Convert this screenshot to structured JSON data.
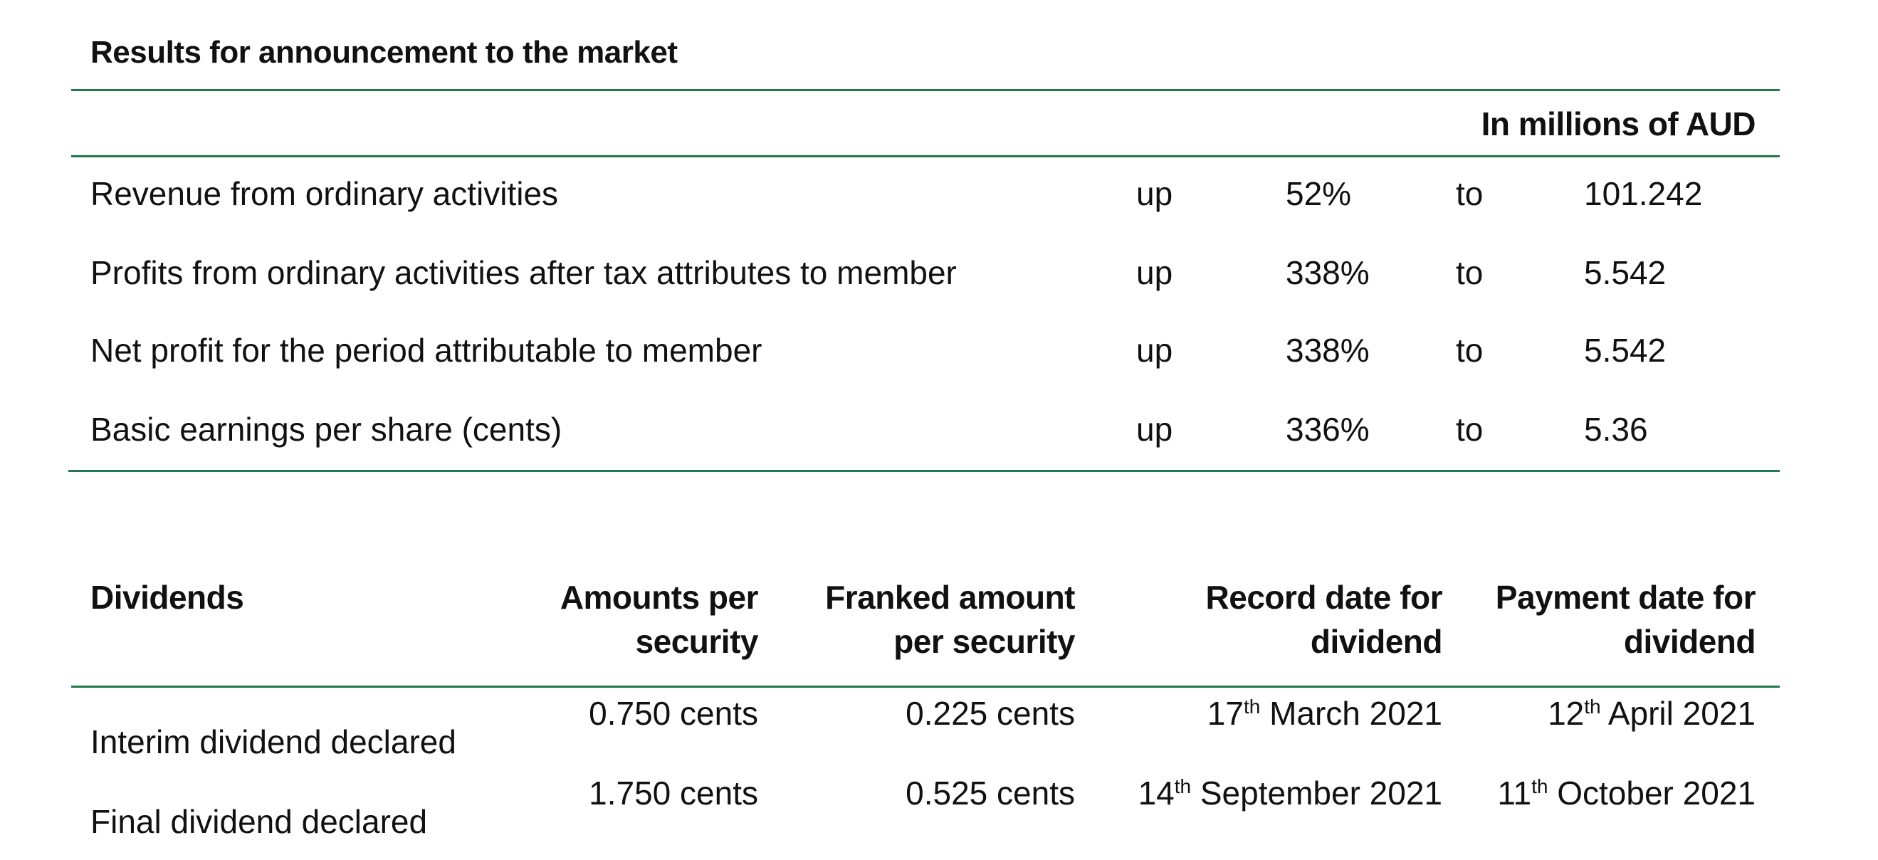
{
  "title": "Results for announcement to the market",
  "unit_header": "In millions of AUD",
  "results": [
    {
      "label": "Revenue from ordinary activities",
      "direction": "up",
      "change": "52%",
      "to": "to",
      "value": "101.242"
    },
    {
      "label": "Profits from ordinary activities after tax attributes to member",
      "direction": "up",
      "change": "338%",
      "to": "to",
      "value": "5.542"
    },
    {
      "label": "Net profit for the period attributable to member",
      "direction": "up",
      "change": "338%",
      "to": "to",
      "value": "5.542"
    },
    {
      "label": "Basic earnings per share (cents)",
      "direction": "up",
      "change": "336%",
      "to": "to",
      "value": "5.36"
    }
  ],
  "dividends": {
    "headers": {
      "label": "Dividends",
      "amount_line1": "Amounts per",
      "amount_line2": "security",
      "franked_line1": "Franked amount",
      "franked_line2": "per security",
      "record_line1": "Record date for",
      "record_line2": "dividend",
      "payment_line1": "Payment date for",
      "payment_line2": "dividend"
    },
    "rows": [
      {
        "label": "Interim dividend declared",
        "amount": "0.750 cents",
        "franked": "0.225 cents",
        "record_day": "17",
        "record_suffix": "th",
        "record_rest": " March 2021",
        "payment_day": "12",
        "payment_suffix": "th",
        "payment_rest": " April 2021"
      },
      {
        "label": "Final dividend declared",
        "amount": "1.750 cents",
        "franked": "0.525 cents",
        "record_day": "14",
        "record_suffix": "th",
        "record_rest": " September 2021",
        "payment_day": "11",
        "payment_suffix": "th",
        "payment_rest": " October 2021"
      }
    ]
  },
  "colors": {
    "rule": "#1e7a4a",
    "text": "#111111"
  }
}
